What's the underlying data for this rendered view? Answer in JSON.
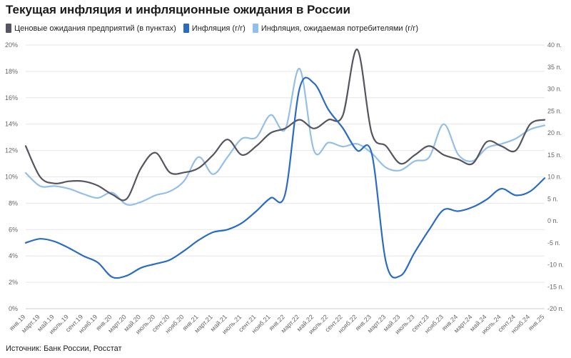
{
  "title": "Текущая инфляция и инфляционные ожидания в России",
  "source": "Источник: Банк России, Росстат",
  "chart_data": {
    "type": "line",
    "x": [
      "янв.19",
      "мар.19",
      "май.19",
      "июль.19",
      "сент.19",
      "нояб.19",
      "янв.20",
      "мар.20",
      "май.20",
      "июль.20",
      "сент.20",
      "нояб.20",
      "янв.21",
      "мар.21",
      "май.21",
      "июль.21",
      "сент.21",
      "нояб.21",
      "янв.22",
      "мар.22",
      "май.22",
      "июль.22",
      "сент.22",
      "нояб.22",
      "янв.23",
      "мар.23",
      "май.23",
      "июль.23",
      "сент.23",
      "нояб.23",
      "янв.24",
      "мар.24",
      "май.24",
      "июль.24",
      "сент.24",
      "нояб.24",
      "янв.25"
    ],
    "x_tick_labels": [
      "янв.19",
      "март.19",
      "май.19",
      "июль.19",
      "сент.19",
      "нояб.19",
      "янв.20",
      "март.20",
      "май.20",
      "июль.20",
      "сент.20",
      "нояб.20",
      "янв.21",
      "март.21",
      "май.21",
      "июль.21",
      "сент.21",
      "нояб.21",
      "янв.22",
      "март.22",
      "май.22",
      "июль.22",
      "сент.22",
      "нояб.22",
      "янв.23",
      "март.23",
      "май.23",
      "июль.23",
      "сент.23",
      "нояб.23",
      "янв.24",
      "март.24",
      "май.24",
      "июль.24",
      "сент.24",
      "нояб.24",
      "янв.25"
    ],
    "y_left": {
      "min": 0,
      "max": 20,
      "step": 2,
      "tick_labels": [
        "0%",
        "2%",
        "4%",
        "6%",
        "8%",
        "10%",
        "12%",
        "14%",
        "16%",
        "18%",
        "20%"
      ]
    },
    "y_right": {
      "min": -20,
      "max": 40,
      "step": 5,
      "tick_labels": [
        "-20 п.",
        "-15 п.",
        "-10 п.",
        "-5 п.",
        "0 п.",
        "5 п.",
        "10 п.",
        "15 п.",
        "20 п.",
        "25 п.",
        "30 п.",
        "35 п.",
        "40 п."
      ]
    },
    "grid": true,
    "legend_position": "top-left",
    "series": [
      {
        "name": "Ценовые ожидания предприятий (в пунктах)",
        "axis": "right",
        "color": "#555561",
        "values": [
          17,
          10,
          8.5,
          9,
          9,
          8,
          6,
          5,
          12,
          15.5,
          11,
          11,
          12,
          15,
          18.5,
          15,
          17,
          20,
          21,
          23,
          21,
          23,
          24,
          39,
          20,
          17,
          13,
          15,
          17,
          15,
          14,
          13,
          18,
          17,
          16,
          22,
          23
        ]
      },
      {
        "name": "Инфляция (г/г)",
        "axis": "left",
        "color": "#2a6cc4",
        "values": [
          5.0,
          5.3,
          5.1,
          4.6,
          4.0,
          3.5,
          2.4,
          2.5,
          3.1,
          3.4,
          3.7,
          4.4,
          5.2,
          5.8,
          6.0,
          6.5,
          7.4,
          8.4,
          8.7,
          16.7,
          17.1,
          15.1,
          13.7,
          12.0,
          11.8,
          3.5,
          2.5,
          4.3,
          6.0,
          7.5,
          7.4,
          7.7,
          8.3,
          9.1,
          8.6,
          8.9,
          9.9
        ]
      },
      {
        "name": "Инфляция, ожидаемая потребителями (г/г)",
        "axis": "left",
        "color": "#94bfe8",
        "values": [
          10.3,
          9.3,
          9.3,
          9.1,
          8.7,
          8.4,
          8.8,
          7.9,
          8.1,
          8.6,
          8.9,
          9.7,
          11.5,
          10.2,
          11.5,
          12.9,
          13.0,
          14.7,
          13.6,
          18.2,
          12.0,
          12.6,
          12.3,
          12.5,
          11.8,
          10.7,
          10.5,
          11.2,
          11.5,
          14.0,
          11.7,
          11.2,
          12.2,
          12.5,
          12.9,
          13.6,
          13.9
        ]
      }
    ]
  }
}
